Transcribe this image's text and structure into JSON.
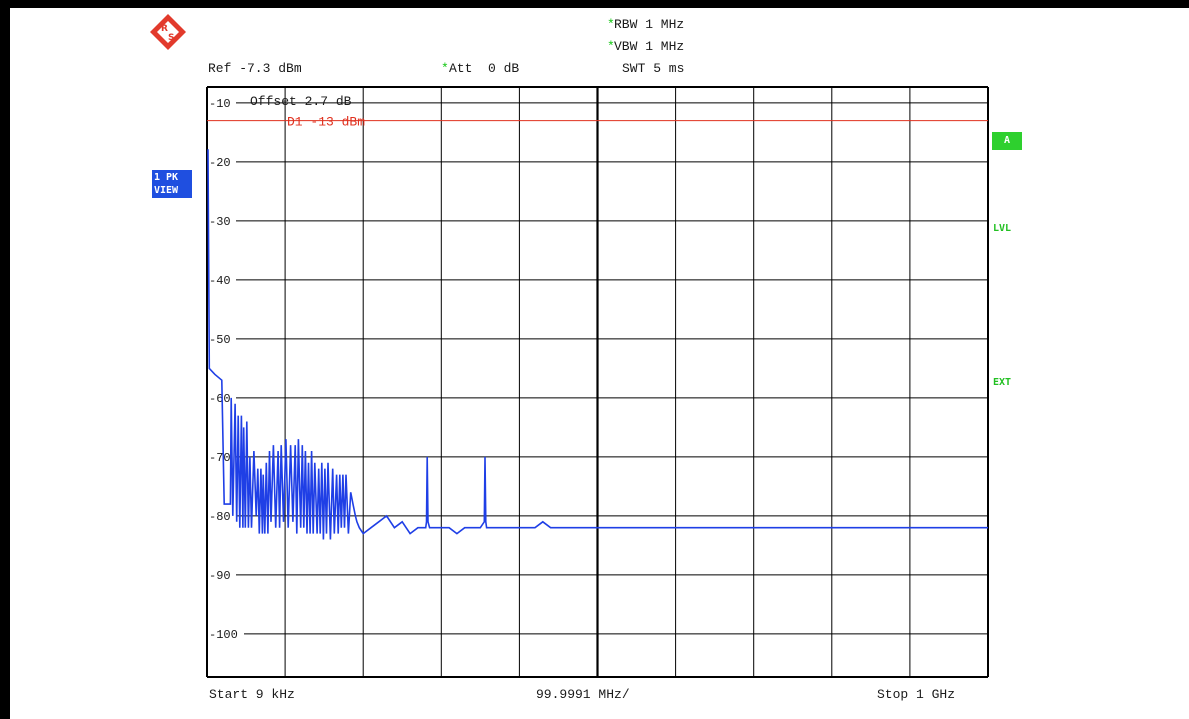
{
  "header": {
    "rbw_star": "*",
    "rbw": "RBW 1 MHz",
    "vbw_star": "*",
    "vbw": "VBW 1 MHz",
    "ref": "Ref -7.3 dBm",
    "att_star": "*",
    "att": "Att  0 dB",
    "swt": "SWT 5 ms"
  },
  "plot_labels": {
    "offset": "Offset  2.7 dB",
    "d1": "D1 -13 dBm"
  },
  "side": {
    "trace_line1": "1 PK",
    "trace_line2": "VIEW",
    "a_badge": "A",
    "lvl": "LVL",
    "ext": "EXT"
  },
  "footer": {
    "start": "Start 9 kHz",
    "div": "99.9991 MHz/",
    "stop": "Stop 1 GHz"
  },
  "colors": {
    "trace": "#1f3fe6",
    "display_line": "#e0301e",
    "grid": "#000000",
    "background": "#ffffff",
    "status_green": "#2ed02e",
    "badge_blue": "#1f4fe0"
  },
  "icons": {
    "logo": "rohde-schwarz-logo-icon"
  },
  "chart_data": {
    "type": "line",
    "title": "",
    "xlabel": "",
    "ylabel": "",
    "xlim": [
      0.009,
      1000
    ],
    "x_unit": "MHz",
    "ylim": [
      -107.3,
      -7.3
    ],
    "y_unit": "dBm",
    "yticks": [
      -10,
      -20,
      -30,
      -40,
      -50,
      -60,
      -70,
      -80,
      -90,
      -100
    ],
    "ytick_labels": [
      "-10",
      "-20",
      "-30",
      "-40",
      "-50",
      "-60",
      "-70",
      "-80",
      "-90",
      "-100"
    ],
    "display_line": {
      "name": "D1",
      "value": -13
    },
    "grid": true,
    "series": [
      {
        "x": [
          0.5,
          1.3,
          3,
          10,
          19,
          22,
          30,
          31,
          33,
          36,
          38,
          40,
          42,
          44,
          46,
          47,
          49,
          51,
          53,
          55,
          57,
          60,
          63,
          65,
          67,
          69,
          71,
          72,
          74,
          76,
          78,
          80,
          82,
          85,
          88,
          91,
          93,
          95,
          98,
          101,
          104,
          107,
          110,
          113,
          115,
          117,
          120,
          122,
          124,
          126,
          128,
          130,
          132,
          134,
          136,
          138,
          141,
          143,
          145,
          147,
          149,
          151,
          153,
          155,
          158,
          161,
          163,
          166,
          168,
          170,
          172,
          174,
          176,
          178,
          181,
          184,
          187,
          190,
          192,
          195,
          200,
          210,
          220,
          230,
          240,
          250,
          260,
          270,
          275,
          280,
          281,
          282,
          283,
          285,
          290,
          300,
          310,
          320,
          330,
          340,
          350,
          355,
          356,
          357,
          358,
          360,
          370,
          380,
          390,
          400,
          410,
          420,
          430,
          440,
          450,
          460,
          470,
          480,
          490,
          500,
          510,
          520,
          530,
          540,
          550,
          560,
          570,
          580,
          590,
          600,
          610,
          620,
          630,
          640,
          650,
          660,
          670,
          680,
          690,
          700,
          710,
          720,
          730,
          740,
          750,
          760,
          770,
          780,
          790,
          800,
          805,
          808,
          810,
          812,
          815,
          818,
          820,
          822,
          824,
          826,
          828,
          830,
          835,
          840,
          845,
          850,
          860,
          870,
          880,
          890,
          900,
          910,
          920,
          930,
          940,
          950,
          960,
          970,
          980,
          990,
          1000
        ],
        "y": [
          -18,
          -18,
          -55,
          -56,
          -57,
          -78,
          -78,
          -60,
          -80,
          -61,
          -81,
          -63,
          -82,
          -63,
          -82,
          -65,
          -82,
          -64,
          -82,
          -70,
          -82,
          -69,
          -80,
          -72,
          -83,
          -72,
          -83,
          -73,
          -83,
          -71,
          -83,
          -69,
          -81,
          -68,
          -82,
          -69,
          -82,
          -68,
          -81,
          -67,
          -82,
          -68,
          -81,
          -68,
          -83,
          -67,
          -82,
          -68,
          -82,
          -69,
          -83,
          -71,
          -83,
          -69,
          -83,
          -71,
          -83,
          -72,
          -83,
          -71,
          -84,
          -72,
          -83,
          -71,
          -84,
          -72,
          -83,
          -73,
          -83,
          -73,
          -82,
          -73,
          -82,
          -73,
          -83,
          -76,
          -78,
          -80,
          -81,
          -82,
          -83,
          -82,
          -81,
          -80,
          -82,
          -81,
          -83,
          -82,
          -82,
          -82,
          -81,
          -70,
          -81,
          -82,
          -82,
          -82,
          -82,
          -83,
          -82,
          -82,
          -82,
          -81,
          -70,
          -81,
          -82,
          -82,
          -82,
          -82,
          -82,
          -82,
          -82,
          -82,
          -81,
          -82,
          -82,
          -82,
          -82,
          -82,
          -82,
          -82,
          -82,
          -82,
          -82,
          -82,
          -82,
          -82,
          -82,
          -82,
          -82,
          -82,
          -82,
          -82,
          -82,
          -82,
          -82,
          -82,
          -82,
          -82,
          -82,
          -82,
          -82,
          -82,
          -82,
          -82,
          -82,
          -82,
          -82,
          -82,
          -82,
          -82,
          -82,
          -82,
          -82,
          -82,
          -82,
          -82,
          -82,
          -82,
          -82,
          -82,
          -82,
          -82,
          -82,
          -82,
          -82,
          -82,
          -82,
          -82,
          -82,
          -82,
          -82,
          -82,
          -82,
          -82,
          -82,
          -82,
          -82,
          -82,
          -82,
          -82,
          -82
        ]
      }
    ]
  }
}
